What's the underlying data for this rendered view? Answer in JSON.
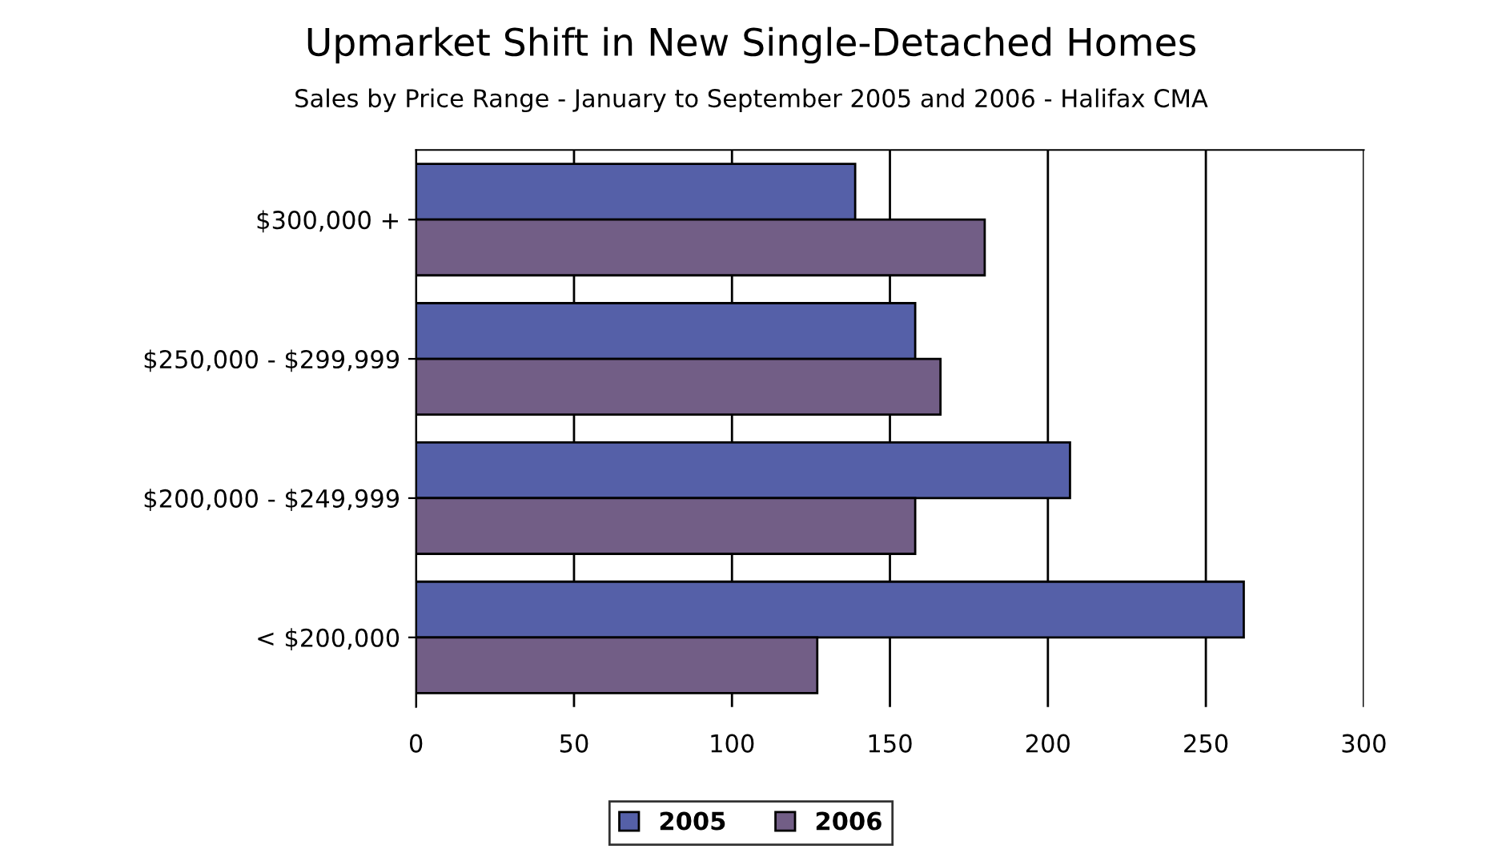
{
  "chart_data": {
    "type": "bar",
    "orientation": "horizontal",
    "title": "Upmarket Shift in New Single-Detached Homes",
    "subtitle": "Sales by Price Range - January to September 2005 and 2006 - Halifax CMA",
    "categories": [
      "$300,000 +",
      "$250,000 - $299,999",
      "$200,000 - $249,999",
      "< $200,000"
    ],
    "series": [
      {
        "name": "2005",
        "color": "#5560a8",
        "values": [
          139,
          158,
          207,
          262
        ]
      },
      {
        "name": "2006",
        "color": "#725e86",
        "values": [
          180,
          166,
          158,
          127
        ]
      }
    ],
    "xlim": [
      0,
      300
    ],
    "xticks": [
      0,
      50,
      100,
      150,
      200,
      250,
      300
    ],
    "grid": "x",
    "legend": "bottom"
  }
}
